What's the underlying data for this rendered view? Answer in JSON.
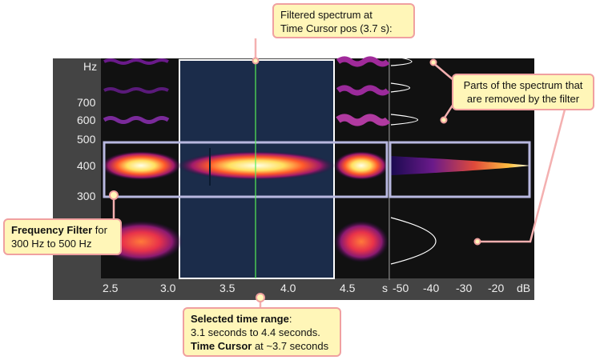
{
  "freq_axis": {
    "unit": "Hz",
    "ticks": [
      "700",
      "600",
      "500",
      "400",
      "300"
    ]
  },
  "time_axis": {
    "ticks": [
      "2.5",
      "3.0",
      "3.5",
      "4.0",
      "4.5"
    ],
    "unit": "s"
  },
  "db_axis": {
    "ticks": [
      "-50",
      "-40",
      "-30",
      "-20"
    ],
    "unit": "dB"
  },
  "callouts": {
    "filtered_spectrum": {
      "line1": "Filtered spectrum at",
      "line2": "Time Cursor pos (3.7 s):"
    },
    "removed_parts": {
      "line1": "Parts of the spectrum that",
      "line2": "are removed by the filter"
    },
    "frequency_filter": {
      "bold": "Frequency Filter",
      "rest1": " for",
      "line2": "300 Hz to 500 Hz"
    },
    "time_range": {
      "bold1": "Selected time range",
      "rest1": ":",
      "line2": "3.1 seconds to 4.4 seconds.",
      "bold3": "Time Cursor",
      "rest3": " at ~3.7 seconds"
    }
  },
  "colors": {
    "panel_bg": "#444444",
    "spectrogram_bg": "#111111",
    "selection_bg": "#1b2c4a",
    "filter_border": "#b8b8e0",
    "cursor": "#55ee55",
    "callout_bg": "#fff6b8",
    "callout_border": "#f0a0a0"
  }
}
